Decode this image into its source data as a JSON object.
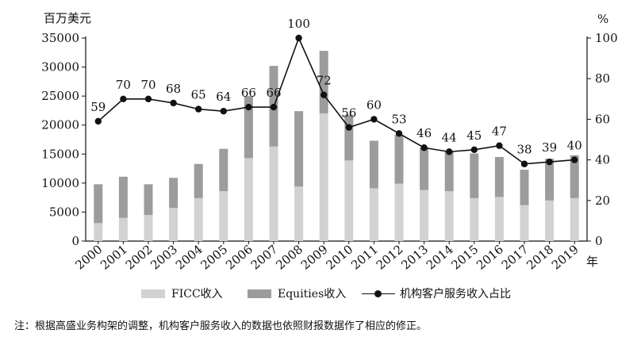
{
  "chart_data": {
    "type": "bar+line",
    "y_left_unit": "百万美元",
    "y_right_unit": "%",
    "x_unit": "年",
    "categories": [
      "2000",
      "2001",
      "2002",
      "2003",
      "2004",
      "2005",
      "2006",
      "2007",
      "2008",
      "2009",
      "2010",
      "2011",
      "2012",
      "2013",
      "2014",
      "2015",
      "2016",
      "2017",
      "2018",
      "2019"
    ],
    "y_left_ticks": [
      0,
      5000,
      10000,
      15000,
      20000,
      25000,
      30000,
      35000
    ],
    "y_left_lim": [
      0,
      35000
    ],
    "y_right_ticks": [
      0,
      20,
      40,
      60,
      80,
      100
    ],
    "y_right_lim": [
      0,
      100
    ],
    "series": [
      {
        "name": "FICC收入",
        "kind": "stacked-bar",
        "axis": "left",
        "color": "#d2d2d2",
        "values": [
          3100,
          4000,
          4500,
          5700,
          7400,
          8600,
          14300,
          16300,
          9400,
          22000,
          13900,
          9100,
          9900,
          8800,
          8600,
          7400,
          7600,
          6200,
          7000,
          7400
        ]
      },
      {
        "name": "Equities收入",
        "kind": "stacked-bar",
        "axis": "left",
        "color": "#9c9c9c",
        "values": [
          6700,
          7100,
          5300,
          5200,
          5900,
          7300,
          10700,
          13900,
          13000,
          10800,
          7900,
          8200,
          8400,
          7300,
          6900,
          7700,
          6900,
          6100,
          7200,
          7400
        ]
      },
      {
        "name": "机构客户服务收入占比",
        "kind": "line",
        "axis": "right",
        "color": "#111111",
        "values": [
          59,
          70,
          70,
          68,
          65,
          64,
          66,
          66,
          100,
          72,
          56,
          60,
          53,
          46,
          44,
          45,
          47,
          38,
          39,
          40
        ]
      }
    ]
  },
  "legend": {
    "ficc": "FICC收入",
    "equities": "Equities收入",
    "ratio": "机构客户服务收入占比"
  },
  "footnote": "注：根据高盛业务构架的调整，机构客户服务收入的数据也依照财报数据作了相应的修正。"
}
